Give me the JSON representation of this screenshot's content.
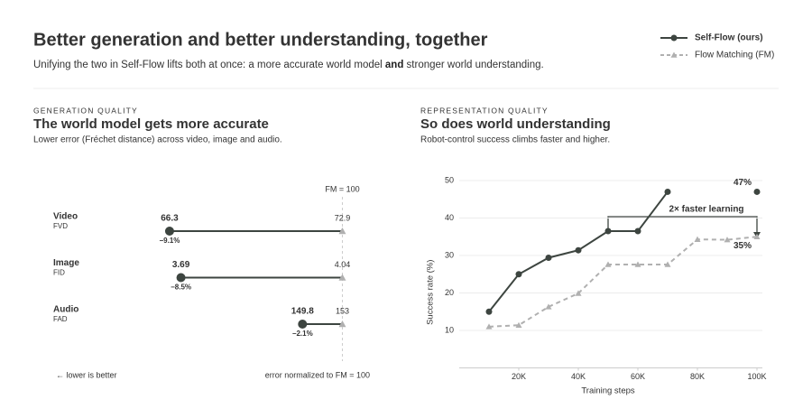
{
  "header": {
    "title": "Better generation and better understanding, together",
    "subtitle": [
      "Unifying the two in Self-Flow lifts both at once: a more accurate world model ",
      "and",
      " stronger world understanding."
    ]
  },
  "chart_data": [
    {
      "type": "dumbbell",
      "kicker": "GENERATION QUALITY",
      "title": "The world model gets more accurate",
      "subtitle": "Lower error (Fréchet distance) across video, image and audio.",
      "categories": [
        "Video",
        "Image",
        "Audio"
      ],
      "sublabels": [
        "FVD",
        "FID",
        "FAD"
      ],
      "xlim": [
        90,
        100.5
      ],
      "reference": {
        "value": 100,
        "label": "FM = 100"
      },
      "series": [
        {
          "name": "Self-Flow (ours)",
          "color": "#3d4540",
          "values": [
            90.9,
            91.5,
            97.9
          ],
          "raw_labels": [
            "66.3",
            "3.69",
            "149.8"
          ],
          "change_labels": [
            "−9.1%",
            "−8.5%",
            "−2.1%"
          ],
          "change_color": "#4e7a5c"
        },
        {
          "name": "Flow Matching (FM)",
          "color": "#b0b0b0",
          "values": [
            100,
            100,
            100
          ],
          "raw_labels": [
            "72.9",
            "4.04",
            "153"
          ]
        }
      ],
      "notes": [
        "← lower is better",
        "error normalized to FM = 100"
      ]
    },
    {
      "type": "line",
      "kicker": "REPRESENTATION QUALITY",
      "title": "So does world understanding",
      "subtitle": "Robot-control success climbs faster and higher.",
      "x": [
        10000,
        20000,
        30000,
        40000,
        50000,
        60000,
        70000,
        80000,
        90000,
        100000
      ],
      "xlim": [
        0,
        100000
      ],
      "xticks": [
        {
          "value": 20000,
          "label": "20K"
        },
        {
          "value": 40000,
          "label": "40K"
        },
        {
          "value": 60000,
          "label": "60K"
        },
        {
          "value": 80000,
          "label": "80K"
        },
        {
          "value": 100000,
          "label": "100K"
        }
      ],
      "ylim": [
        0,
        50
      ],
      "yticks": [
        10,
        20,
        30,
        40,
        50
      ],
      "grid": true,
      "xlabel": "Training steps",
      "ylabel": "Success rate (%)",
      "annotation": "2× faster learning",
      "series": [
        {
          "name": "Self-Flow (ours)",
          "color": "#3d4540",
          "dashed": false,
          "marker": "circle",
          "values": [
            15,
            25,
            29.4,
            31.4,
            36.5,
            36.5,
            47,
            null,
            null,
            47
          ],
          "end_label": "47%"
        },
        {
          "name": "Flow Matching (FM)",
          "color": "#b0b0b0",
          "dashed": true,
          "marker": "triangle",
          "values": [
            11,
            11.4,
            16.3,
            19.9,
            27.6,
            27.6,
            27.6,
            34.3,
            34.2,
            35
          ],
          "end_label": "35%"
        }
      ]
    }
  ]
}
